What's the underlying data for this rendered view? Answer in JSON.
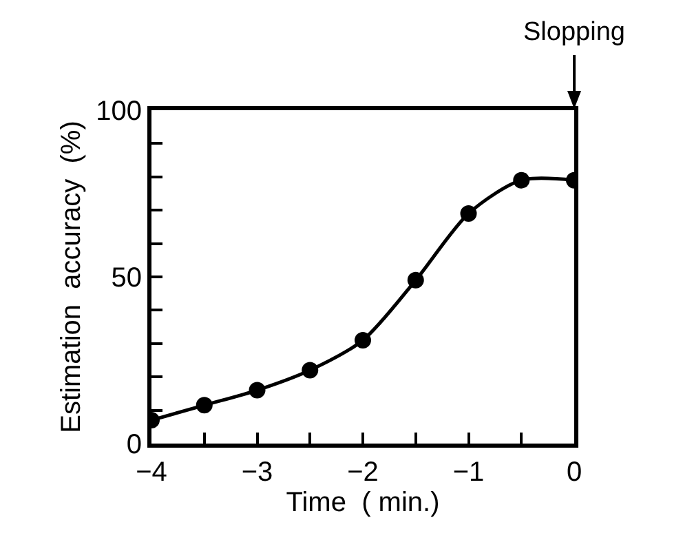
{
  "chart_data": {
    "type": "line",
    "xlabel": "Time  ( min.)",
    "ylabel": "Estimation  accuracy  (%)",
    "x": [
      -4,
      -3.5,
      -3,
      -2.5,
      -2,
      -1.5,
      -1,
      -0.5,
      0
    ],
    "series": [
      {
        "color": "#000000",
        "values": [
          7,
          11.5,
          16,
          22,
          31,
          49,
          69,
          79,
          79
        ]
      }
    ],
    "xlim": [
      -4,
      0
    ],
    "ylim": [
      0,
      100
    ],
    "xticks": [
      {
        "value": -4,
        "label": "−4"
      },
      {
        "value": -3.5,
        "label": null
      },
      {
        "value": -3,
        "label": "−3"
      },
      {
        "value": -2.5,
        "label": null
      },
      {
        "value": -2,
        "label": "−2"
      },
      {
        "value": -1.5,
        "label": null
      },
      {
        "value": -1,
        "label": "−1"
      },
      {
        "value": -0.5,
        "label": null
      },
      0
    ],
    "yticks": [
      0,
      {
        "value": 10,
        "label": null
      },
      {
        "value": 20,
        "label": null
      },
      {
        "value": 30,
        "label": null
      },
      {
        "value": 40,
        "label": null
      },
      50,
      {
        "value": 60,
        "label": null
      },
      {
        "value": 70,
        "label": null
      },
      {
        "value": 80,
        "label": null
      },
      {
        "value": 90,
        "label": null
      },
      100
    ],
    "annotations": [
      "Slopping"
    ],
    "marker": "circle",
    "line_style": "solid"
  }
}
